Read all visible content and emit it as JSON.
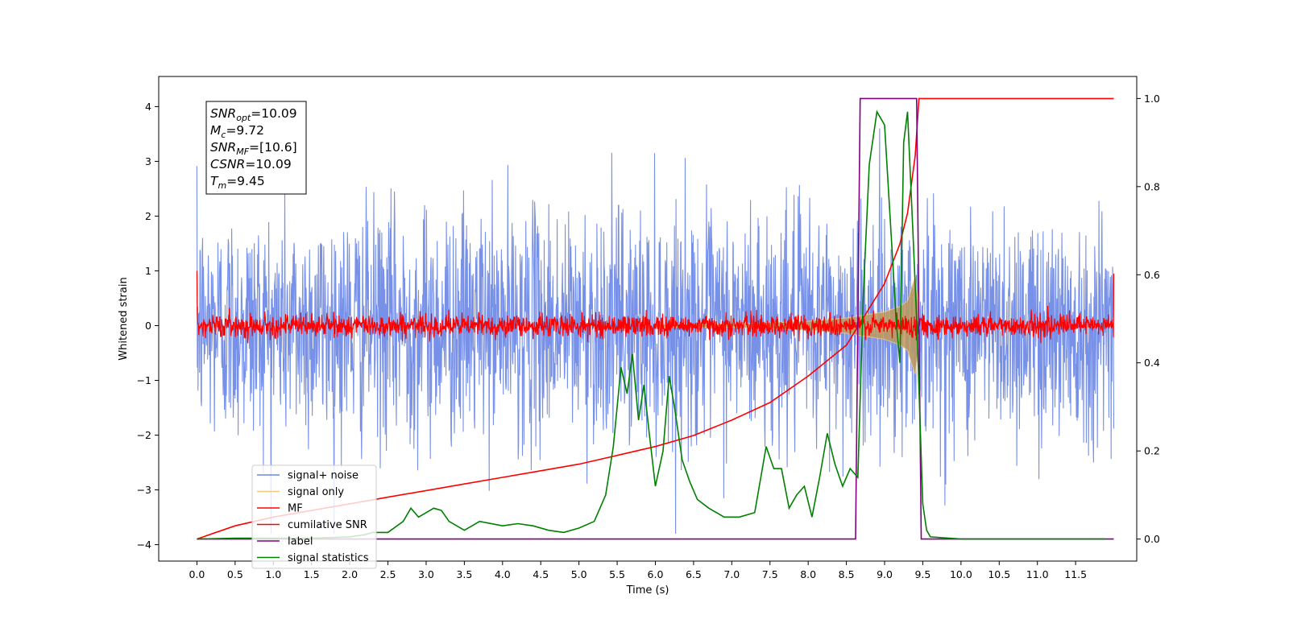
{
  "chart_data": {
    "type": "line",
    "xlabel": "Time (s)",
    "ylabel": "Whitened strain",
    "xlim": [
      -0.5,
      12.3
    ],
    "ylim": [
      -4.3,
      4.55
    ],
    "y2lim": [
      -0.05,
      1.05
    ],
    "x_ticks": [
      "0.0",
      "0.5",
      "1.0",
      "1.5",
      "2.0",
      "2.5",
      "3.0",
      "3.5",
      "4.0",
      "4.5",
      "5.0",
      "5.5",
      "6.0",
      "6.5",
      "7.0",
      "7.5",
      "8.0",
      "8.5",
      "9.0",
      "9.5",
      "10.0",
      "10.5",
      "11.0",
      "11.5"
    ],
    "y_ticks": [
      "4",
      "3",
      "2",
      "1",
      "0",
      "−1",
      "−2",
      "−3",
      "−4"
    ],
    "y2_ticks": [
      "1.0",
      "0.8",
      "0.6",
      "0.4",
      "0.2",
      "0.0"
    ],
    "annotation": {
      "lines": [
        {
          "base": "SNR",
          "sub": "opt",
          "value": "=10.09"
        },
        {
          "base": "M",
          "sub": "c",
          "value": "=9.72"
        },
        {
          "base": "SNR",
          "sub": "MF",
          "value": "=[10.6]"
        },
        {
          "base": "CSNR",
          "sub": "",
          "value": "=10.09"
        },
        {
          "base": "T",
          "sub": "m",
          "value": "=9.45"
        }
      ]
    },
    "legend": {
      "placement": "lower-left",
      "entries": [
        {
          "name": "signal+ noise",
          "color": "#6b87e6"
        },
        {
          "name": "signal only",
          "color": "#f5c77a"
        },
        {
          "name": "MF",
          "color": "#ff0000"
        },
        {
          "name": "cumilative SNR",
          "color": "#ff0000"
        },
        {
          "name": "label",
          "color": "#800080"
        },
        {
          "name": "signal statistics",
          "color": "#008000"
        }
      ]
    },
    "series": [
      {
        "name": "signal+ noise",
        "axis": "left",
        "kind": "noise",
        "x_range": [
          0,
          12.0
        ],
        "amplitude_sd": 1.0
      },
      {
        "name": "signal only",
        "axis": "left",
        "kind": "chirp_envelope",
        "x": [
          0,
          7.0,
          8.0,
          8.5,
          9.0,
          9.2,
          9.3,
          9.4,
          9.45
        ],
        "envelope": [
          0.01,
          0.03,
          0.08,
          0.14,
          0.25,
          0.35,
          0.45,
          0.9,
          0.3
        ]
      },
      {
        "name": "MF",
        "axis": "left",
        "kind": "noise",
        "x_range": [
          0,
          12.0
        ],
        "amplitude_sd": 0.1,
        "edge_values": [
          1.0,
          0.95
        ]
      },
      {
        "name": "cumilative SNR",
        "axis": "right",
        "x": [
          0.0,
          0.5,
          1.0,
          1.5,
          2.0,
          2.5,
          3.0,
          3.5,
          4.0,
          4.5,
          5.0,
          5.5,
          6.0,
          6.5,
          7.0,
          7.5,
          8.0,
          8.5,
          9.0,
          9.2,
          9.3,
          9.4,
          9.45,
          12.0
        ],
        "values": [
          0.0,
          0.03,
          0.05,
          0.065,
          0.08,
          0.095,
          0.11,
          0.125,
          0.14,
          0.155,
          0.17,
          0.19,
          0.21,
          0.235,
          0.27,
          0.31,
          0.37,
          0.44,
          0.58,
          0.67,
          0.74,
          0.87,
          1.0,
          1.0
        ]
      },
      {
        "name": "label",
        "axis": "right",
        "x": [
          0.0,
          8.62,
          8.68,
          9.42,
          9.48,
          12.0
        ],
        "values": [
          0,
          0,
          1,
          1,
          0,
          0
        ]
      },
      {
        "name": "signal statistics",
        "axis": "right",
        "x": [
          0.0,
          0.5,
          1.0,
          1.5,
          2.0,
          2.2,
          2.3,
          2.5,
          2.7,
          2.8,
          2.9,
          3.0,
          3.1,
          3.2,
          3.3,
          3.5,
          3.6,
          3.7,
          4.0,
          4.2,
          4.4,
          4.6,
          4.8,
          5.0,
          5.2,
          5.35,
          5.45,
          5.55,
          5.63,
          5.7,
          5.78,
          5.85,
          5.92,
          6.0,
          6.1,
          6.18,
          6.25,
          6.35,
          6.45,
          6.55,
          6.7,
          6.9,
          7.1,
          7.3,
          7.45,
          7.55,
          7.65,
          7.75,
          7.85,
          7.95,
          8.05,
          8.15,
          8.25,
          8.35,
          8.45,
          8.55,
          8.65,
          8.72,
          8.8,
          8.9,
          9.0,
          9.1,
          9.15,
          9.2,
          9.25,
          9.3,
          9.37,
          9.42,
          9.5,
          9.55,
          9.6,
          10.0,
          11.0,
          11.9
        ],
        "values": [
          0.0,
          0.002,
          0.002,
          0.002,
          0.005,
          0.01,
          0.015,
          0.015,
          0.04,
          0.07,
          0.05,
          0.06,
          0.07,
          0.065,
          0.04,
          0.02,
          0.03,
          0.04,
          0.03,
          0.035,
          0.03,
          0.02,
          0.015,
          0.025,
          0.04,
          0.1,
          0.21,
          0.39,
          0.33,
          0.42,
          0.27,
          0.35,
          0.24,
          0.12,
          0.2,
          0.37,
          0.3,
          0.18,
          0.13,
          0.09,
          0.07,
          0.05,
          0.05,
          0.06,
          0.21,
          0.16,
          0.16,
          0.07,
          0.1,
          0.12,
          0.05,
          0.14,
          0.24,
          0.17,
          0.12,
          0.16,
          0.14,
          0.55,
          0.85,
          0.97,
          0.94,
          0.65,
          0.5,
          0.4,
          0.9,
          0.97,
          0.7,
          0.5,
          0.08,
          0.02,
          0.005,
          0.0,
          0.0,
          0.0
        ]
      }
    ]
  }
}
